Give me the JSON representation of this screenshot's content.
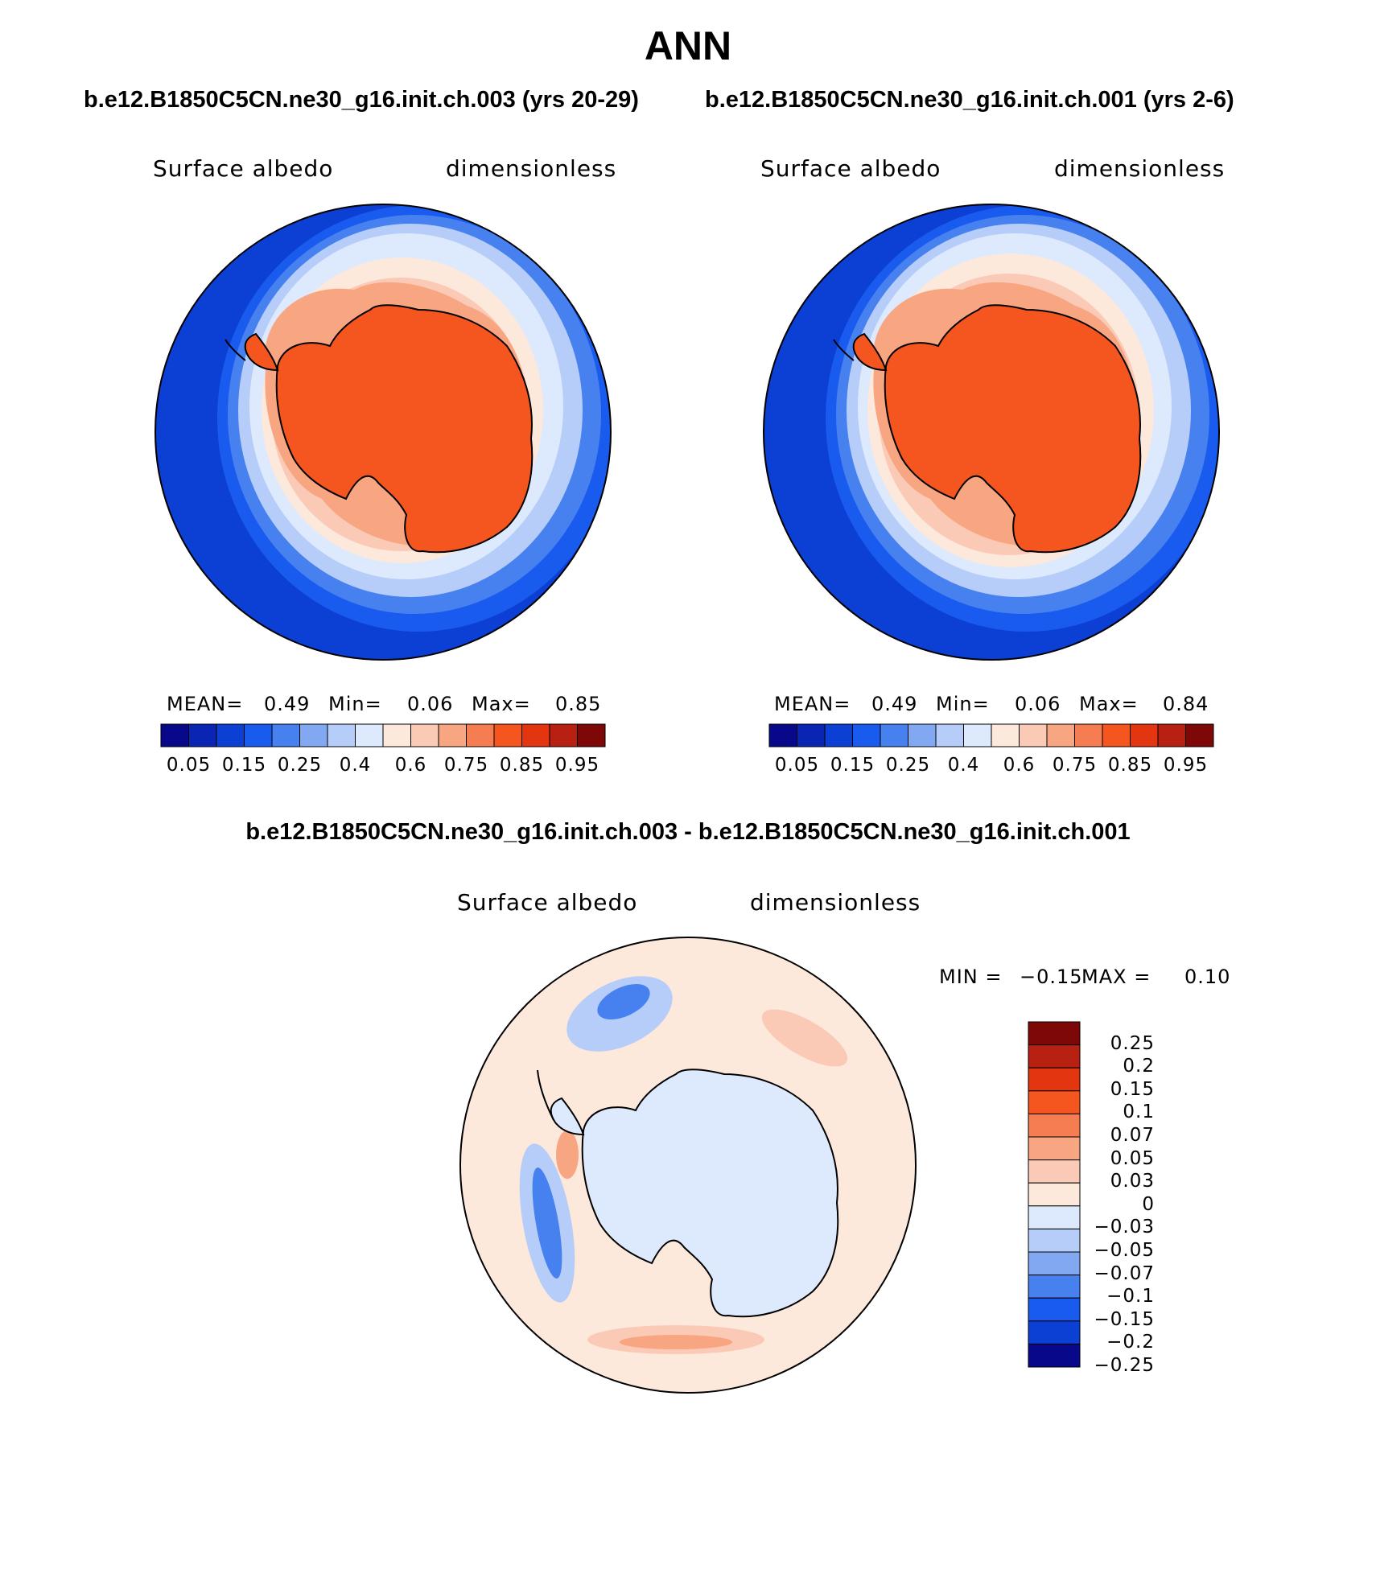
{
  "page": {
    "title": "ANN",
    "left_case_title": "b.e12.B1850C5CN.ne30_g16.init.ch.003 (yrs 20-29)",
    "right_case_title": "b.e12.B1850C5CN.ne30_g16.init.ch.001 (yrs 2-6)",
    "diff_title": "b.e12.B1850C5CN.ne30_g16.init.ch.003 - b.e12.B1850C5CN.ne30_g16.init.ch.001"
  },
  "panels": {
    "left": {
      "variable": "Surface albedo",
      "units": "dimensionless",
      "mean_label": "MEAN=",
      "mean": "0.49",
      "min_label": "Min=",
      "min": "0.06",
      "max_label": "Max=",
      "max": "0.85"
    },
    "right": {
      "variable": "Surface albedo",
      "units": "dimensionless",
      "mean_label": "MEAN=",
      "mean": "0.49",
      "min_label": "Min=",
      "min": "0.06",
      "max_label": "Max=",
      "max": "0.84"
    },
    "diff": {
      "variable": "Surface albedo",
      "units": "dimensionless",
      "min_label": "MIN =",
      "min": "−0.15",
      "max_label": "MAX =",
      "max": "0.10"
    }
  },
  "colorbars": {
    "abs_colors": [
      "#08088a",
      "#0a24b4",
      "#0c3fd4",
      "#1a5bef",
      "#4781ef",
      "#82a8f2",
      "#b5cdf8",
      "#dde9fc",
      "#fde8dc",
      "#fbcab6",
      "#f8a682",
      "#f67d52",
      "#f5561f",
      "#e33510",
      "#b82012",
      "#7e0808"
    ],
    "abs_ticks": [
      "0.05",
      "0.15",
      "0.25",
      "0.4",
      "0.6",
      "0.75",
      "0.85",
      "0.95"
    ],
    "diff_colors": [
      "#7e0808",
      "#b82012",
      "#e33510",
      "#f5561f",
      "#f67d52",
      "#f8a682",
      "#fbcab6",
      "#fde8dc",
      "#dde9fc",
      "#b5cdf8",
      "#82a8f2",
      "#4781ef",
      "#1a5bef",
      "#0c3fd4",
      "#08088a"
    ],
    "diff_ticks": [
      "0.25",
      "0.2",
      "0.15",
      "0.1",
      "0.07",
      "0.05",
      "0.03",
      "0",
      "−0.03",
      "−0.05",
      "−0.07",
      "−0.1",
      "−0.15",
      "−0.2",
      "−0.25"
    ]
  },
  "map_palette": {
    "ocean_deep": "#0c3fd4",
    "ocean_mid": "#1a5bef",
    "ocean_light": "#4781ef",
    "ice_pale": "#b5cdf8",
    "ice_lighter": "#dde9fc",
    "sea_ice_warm": "#fde8dc",
    "sea_ice_peach": "#fbcab6",
    "coast_salmon": "#f8a682",
    "land_orange": "#f5561f",
    "diff_bg": "#fde8dc",
    "diff_blue": "#dde9fc"
  }
}
